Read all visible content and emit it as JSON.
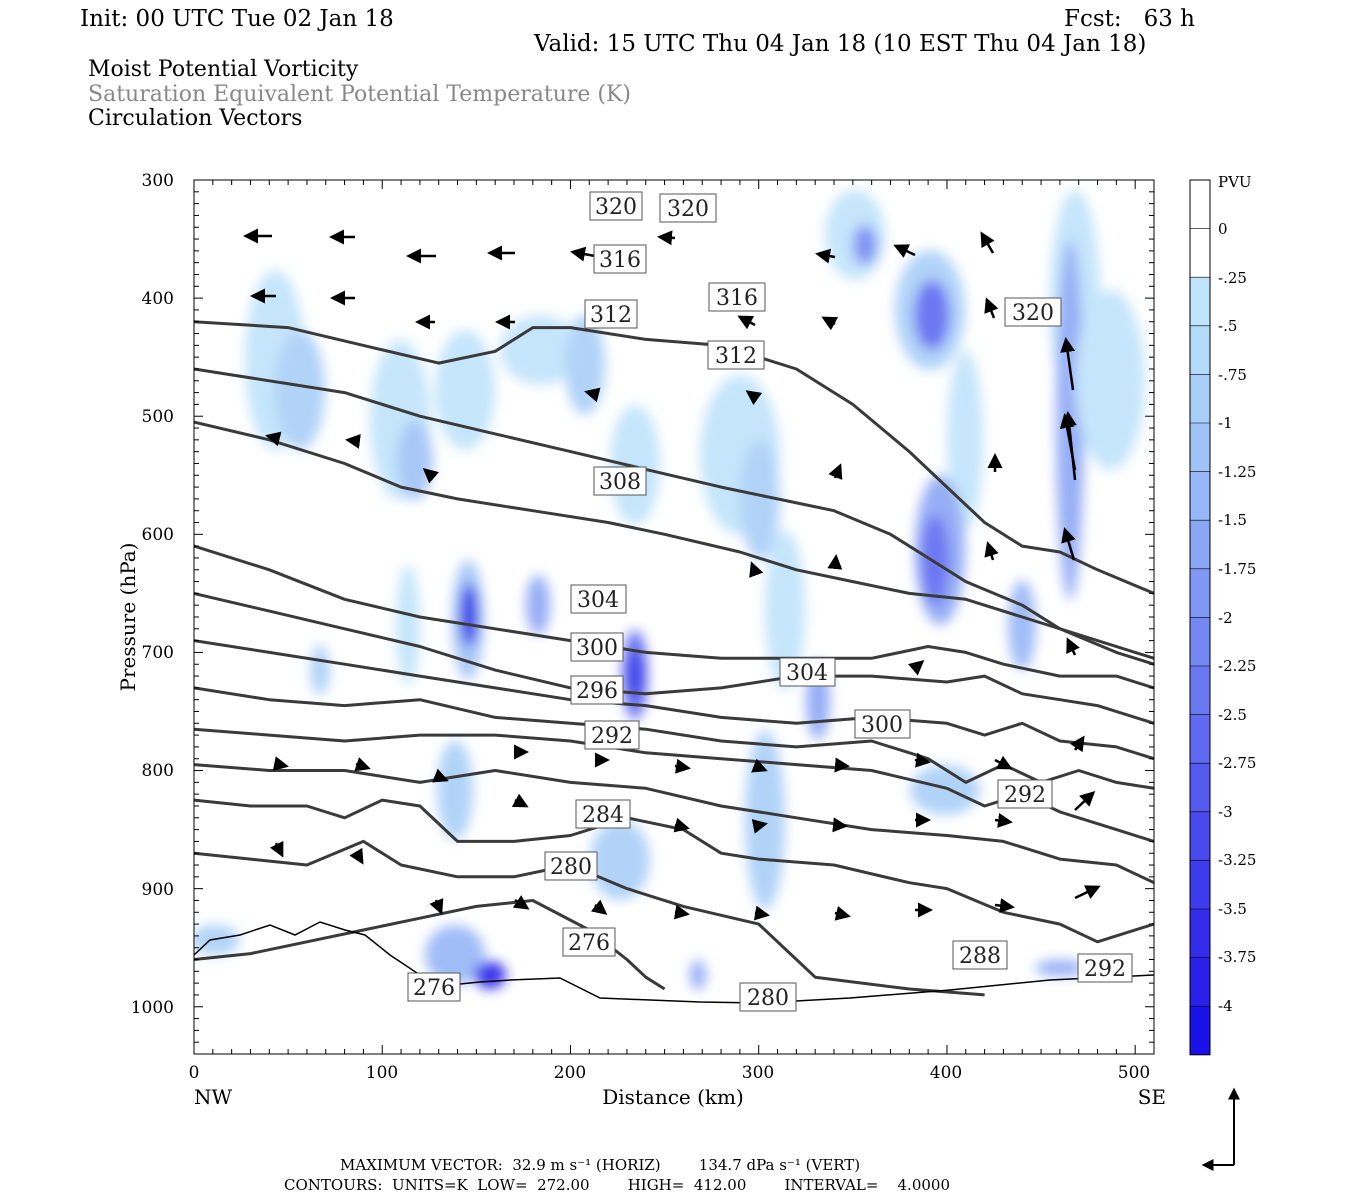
{
  "header": {
    "init": "Init: 00 UTC Tue 02 Jan 18",
    "fcst": "Fcst:   63 h",
    "valid": "Valid: 15 UTC Thu 04 Jan 18 (10 EST Thu 04 Jan 18)"
  },
  "titles": {
    "line1": "Moist Potential Vorticity",
    "line2": "Saturation Equivalent Potential Temperature (K)",
    "line3": "Circulation Vectors",
    "line1_color": "#000000",
    "line2_color": "#888888",
    "line3_color": "#000000"
  },
  "footer": {
    "max_vector": "MAXIMUM VECTOR:  32.9 m s⁻¹ (HORIZ)        134.7 dPa s⁻¹ (VERT)",
    "contours": "CONTOURS:  UNITS=K  LOW=  272.00        HIGH=  412.00        INTERVAL=    4.0000"
  },
  "colors": {
    "contour": "#3a3a3a",
    "pv_light": "#bfe3fb",
    "pv_mid": "#96b6f7",
    "pv_dark": "#5a6ef0",
    "pv_deep": "#1a22e6"
  },
  "chart_data": {
    "type": "cross-section",
    "xlabel": "Distance (km)",
    "ylabel": "Pressure (hPa)",
    "xlim": [
      0,
      510
    ],
    "ylim": [
      1040,
      300
    ],
    "x_ticks": [
      "0",
      "100",
      "200",
      "300",
      "400",
      "500"
    ],
    "y_ticks": [
      "300",
      "400",
      "500",
      "600",
      "700",
      "800",
      "900",
      "1000"
    ],
    "x_end_labels": {
      "left": "NW",
      "right": "SE"
    },
    "colorbar": {
      "unit": "PVU",
      "labels": [
        "0",
        "-.25",
        "-.5",
        "-.75",
        "-1",
        "-1.25",
        "-1.5",
        "-1.75",
        "-2",
        "-2.25",
        "-2.5",
        "-2.75",
        "-3",
        "-3.25",
        "-3.5",
        "-3.75",
        "-4"
      ],
      "colors": [
        "#ffffff",
        "#ffffff",
        "#bfe3fb",
        "#b3daf9",
        "#a9cff8",
        "#a0c2f7",
        "#96b6f7",
        "#8ba6f5",
        "#8097f4",
        "#7587f3",
        "#6a78f2",
        "#5f69f1",
        "#5459ef",
        "#494aee",
        "#3e3bec",
        "#332ceb",
        "#2a20ea",
        "#1a10e8"
      ]
    },
    "contours_K": [
      {
        "value": 276,
        "points": [
          [
            0,
            960
          ],
          [
            30,
            955
          ],
          [
            60,
            945
          ],
          [
            90,
            935
          ],
          [
            120,
            925
          ],
          [
            150,
            915
          ],
          [
            180,
            910
          ],
          [
            210,
            935
          ],
          [
            230,
            960
          ],
          [
            240,
            975
          ],
          [
            250,
            985
          ]
        ]
      },
      {
        "value": 280,
        "points": [
          [
            0,
            870
          ],
          [
            30,
            875
          ],
          [
            60,
            880
          ],
          [
            90,
            860
          ],
          [
            110,
            880
          ],
          [
            140,
            890
          ],
          [
            170,
            890
          ],
          [
            200,
            880
          ],
          [
            230,
            900
          ],
          [
            260,
            915
          ],
          [
            300,
            930
          ],
          [
            320,
            960
          ],
          [
            330,
            975
          ],
          [
            380,
            985
          ],
          [
            420,
            990
          ]
        ]
      },
      {
        "value": 284,
        "points": [
          [
            0,
            825
          ],
          [
            30,
            830
          ],
          [
            60,
            830
          ],
          [
            80,
            840
          ],
          [
            100,
            825
          ],
          [
            120,
            830
          ],
          [
            140,
            860
          ],
          [
            170,
            860
          ],
          [
            200,
            855
          ],
          [
            230,
            840
          ],
          [
            260,
            850
          ],
          [
            280,
            870
          ],
          [
            300,
            875
          ],
          [
            340,
            880
          ],
          [
            380,
            895
          ],
          [
            400,
            900
          ],
          [
            430,
            920
          ],
          [
            460,
            930
          ],
          [
            480,
            945
          ],
          [
            510,
            930
          ]
        ]
      },
      {
        "value": 288,
        "points": [
          [
            0,
            795
          ],
          [
            40,
            800
          ],
          [
            80,
            800
          ],
          [
            120,
            810
          ],
          [
            160,
            800
          ],
          [
            200,
            810
          ],
          [
            240,
            815
          ],
          [
            280,
            830
          ],
          [
            320,
            840
          ],
          [
            360,
            850
          ],
          [
            400,
            855
          ],
          [
            430,
            860
          ],
          [
            460,
            875
          ],
          [
            490,
            880
          ],
          [
            510,
            895
          ]
        ]
      },
      {
        "value": 292,
        "points": [
          [
            0,
            765
          ],
          [
            40,
            770
          ],
          [
            80,
            775
          ],
          [
            120,
            770
          ],
          [
            160,
            770
          ],
          [
            200,
            775
          ],
          [
            240,
            785
          ],
          [
            280,
            790
          ],
          [
            320,
            795
          ],
          [
            360,
            800
          ],
          [
            400,
            815
          ],
          [
            420,
            830
          ],
          [
            440,
            820
          ],
          [
            460,
            835
          ],
          [
            490,
            850
          ],
          [
            510,
            860
          ]
        ]
      },
      {
        "value": 296,
        "points": [
          [
            0,
            730
          ],
          [
            40,
            740
          ],
          [
            80,
            745
          ],
          [
            120,
            740
          ],
          [
            160,
            755
          ],
          [
            200,
            760
          ],
          [
            240,
            765
          ],
          [
            280,
            775
          ],
          [
            320,
            780
          ],
          [
            360,
            775
          ],
          [
            390,
            790
          ],
          [
            410,
            810
          ],
          [
            430,
            795
          ],
          [
            450,
            810
          ],
          [
            470,
            800
          ],
          [
            490,
            810
          ],
          [
            510,
            815
          ]
        ]
      },
      {
        "value": 300,
        "points": [
          [
            0,
            690
          ],
          [
            40,
            700
          ],
          [
            80,
            710
          ],
          [
            120,
            720
          ],
          [
            160,
            730
          ],
          [
            200,
            740
          ],
          [
            240,
            745
          ],
          [
            280,
            755
          ],
          [
            320,
            760
          ],
          [
            360,
            755
          ],
          [
            400,
            760
          ],
          [
            420,
            770
          ],
          [
            440,
            760
          ],
          [
            460,
            775
          ],
          [
            490,
            780
          ],
          [
            510,
            790
          ]
        ]
      },
      {
        "value": 304,
        "points": [
          [
            0,
            650
          ],
          [
            40,
            665
          ],
          [
            80,
            680
          ],
          [
            120,
            695
          ],
          [
            160,
            715
          ],
          [
            200,
            730
          ],
          [
            240,
            735
          ],
          [
            280,
            730
          ],
          [
            320,
            720
          ],
          [
            360,
            720
          ],
          [
            400,
            725
          ],
          [
            420,
            720
          ],
          [
            440,
            735
          ],
          [
            460,
            740
          ],
          [
            480,
            745
          ],
          [
            510,
            760
          ]
        ]
      },
      {
        "value": 308,
        "points": [
          [
            0,
            610
          ],
          [
            40,
            630
          ],
          [
            80,
            655
          ],
          [
            120,
            670
          ],
          [
            160,
            680
          ],
          [
            200,
            690
          ],
          [
            240,
            700
          ],
          [
            280,
            705
          ],
          [
            320,
            705
          ],
          [
            360,
            705
          ],
          [
            390,
            695
          ],
          [
            410,
            700
          ],
          [
            430,
            710
          ],
          [
            460,
            720
          ],
          [
            490,
            720
          ],
          [
            510,
            730
          ]
        ]
      },
      {
        "value": 312,
        "points": [
          [
            0,
            505
          ],
          [
            40,
            520
          ],
          [
            80,
            540
          ],
          [
            110,
            560
          ],
          [
            140,
            570
          ],
          [
            180,
            580
          ],
          [
            220,
            590
          ],
          [
            250,
            600
          ],
          [
            290,
            615
          ],
          [
            320,
            630
          ],
          [
            350,
            640
          ],
          [
            380,
            650
          ],
          [
            410,
            655
          ],
          [
            440,
            670
          ],
          [
            470,
            685
          ],
          [
            510,
            705
          ]
        ]
      },
      {
        "value": 316,
        "points": [
          [
            0,
            460
          ],
          [
            40,
            470
          ],
          [
            80,
            480
          ],
          [
            120,
            500
          ],
          [
            160,
            515
          ],
          [
            200,
            530
          ],
          [
            240,
            545
          ],
          [
            280,
            560
          ],
          [
            310,
            570
          ],
          [
            340,
            580
          ],
          [
            370,
            600
          ],
          [
            390,
            620
          ],
          [
            410,
            640
          ],
          [
            440,
            660
          ],
          [
            460,
            680
          ],
          [
            490,
            700
          ],
          [
            510,
            710
          ]
        ]
      },
      {
        "value": 320,
        "points": [
          [
            0,
            420
          ],
          [
            50,
            425
          ],
          [
            90,
            440
          ],
          [
            130,
            455
          ],
          [
            160,
            445
          ],
          [
            180,
            425
          ],
          [
            200,
            425
          ],
          [
            240,
            435
          ],
          [
            280,
            440
          ],
          [
            320,
            460
          ],
          [
            350,
            490
          ],
          [
            380,
            530
          ],
          [
            400,
            560
          ],
          [
            420,
            590
          ],
          [
            440,
            610
          ],
          [
            460,
            615
          ],
          [
            480,
            630
          ],
          [
            510,
            650
          ]
        ]
      }
    ]
  }
}
